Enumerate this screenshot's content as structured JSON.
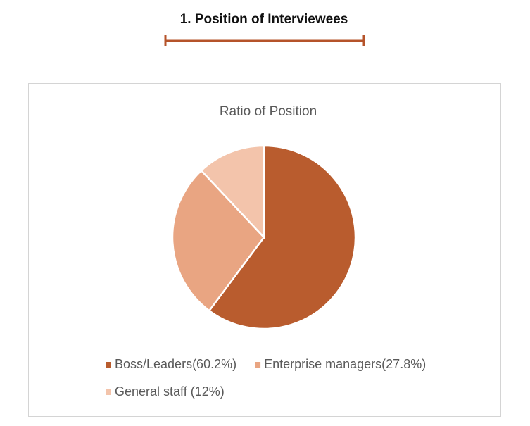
{
  "heading": "1. Position of Interviewees",
  "chart_data": {
    "type": "pie",
    "title": "Ratio of Position",
    "categories": [
      "Boss/Leaders(60.2%)",
      "Enterprise managers(27.8%)",
      "General staff (12%)"
    ],
    "values": [
      60.2,
      27.8,
      12
    ],
    "colors": [
      "#b95c2e",
      "#e9a582",
      "#f3c4ab"
    ],
    "legend": "bottom"
  }
}
